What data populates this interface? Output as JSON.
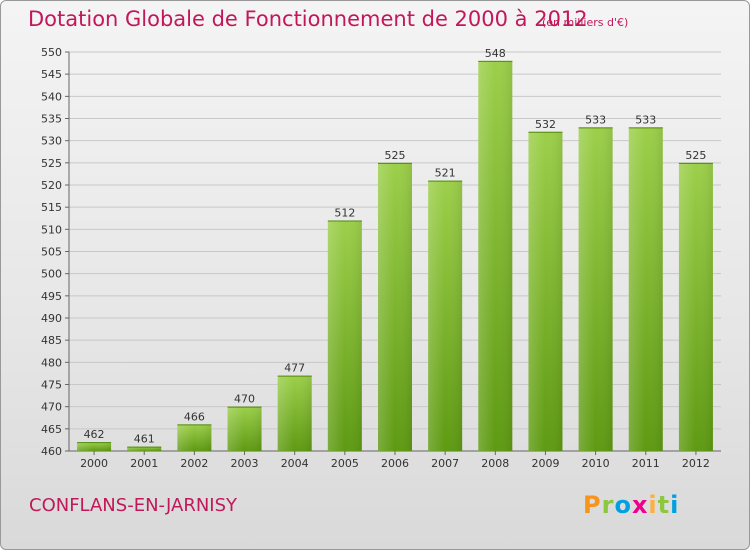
{
  "title": "Dotation Globale de Fonctionnement de 2000 à 2012",
  "unit_note": "(en milliers d'€)",
  "commune": "CONFLANS-EN-JARNISY",
  "logo": {
    "text": "Proxiti",
    "letters": [
      {
        "ch": "P",
        "color": "#f7941d"
      },
      {
        "ch": "r",
        "color": "#8dc63f"
      },
      {
        "ch": "o",
        "color": "#00a0e2"
      },
      {
        "ch": "x",
        "color": "#ec008c"
      },
      {
        "ch": "i",
        "color": "#fbb040"
      },
      {
        "ch": "t",
        "color": "#8dc63f"
      },
      {
        "ch": "i",
        "color": "#00a0e2"
      }
    ]
  },
  "colors": {
    "title": "#c2185b",
    "bar_top": "#9ccf4a",
    "bar_bottom": "#5e9a12",
    "grid": "#c8c8c8"
  },
  "chart_data": {
    "type": "bar",
    "title": "Dotation Globale de Fonctionnement de 2000 à 2012",
    "subtitle": "(en milliers d'€)",
    "categories": [
      "2000",
      "2001",
      "2002",
      "2003",
      "2004",
      "2005",
      "2006",
      "2007",
      "2008",
      "2009",
      "2010",
      "2011",
      "2012"
    ],
    "values": [
      462,
      461,
      466,
      470,
      477,
      512,
      525,
      521,
      548,
      532,
      533,
      533,
      525
    ],
    "ylim": [
      460,
      550
    ],
    "yticks": [
      460,
      465,
      470,
      475,
      480,
      485,
      490,
      495,
      500,
      505,
      510,
      515,
      520,
      525,
      530,
      535,
      540,
      545,
      550
    ],
    "grid": true,
    "xlabel": "",
    "ylabel": ""
  }
}
